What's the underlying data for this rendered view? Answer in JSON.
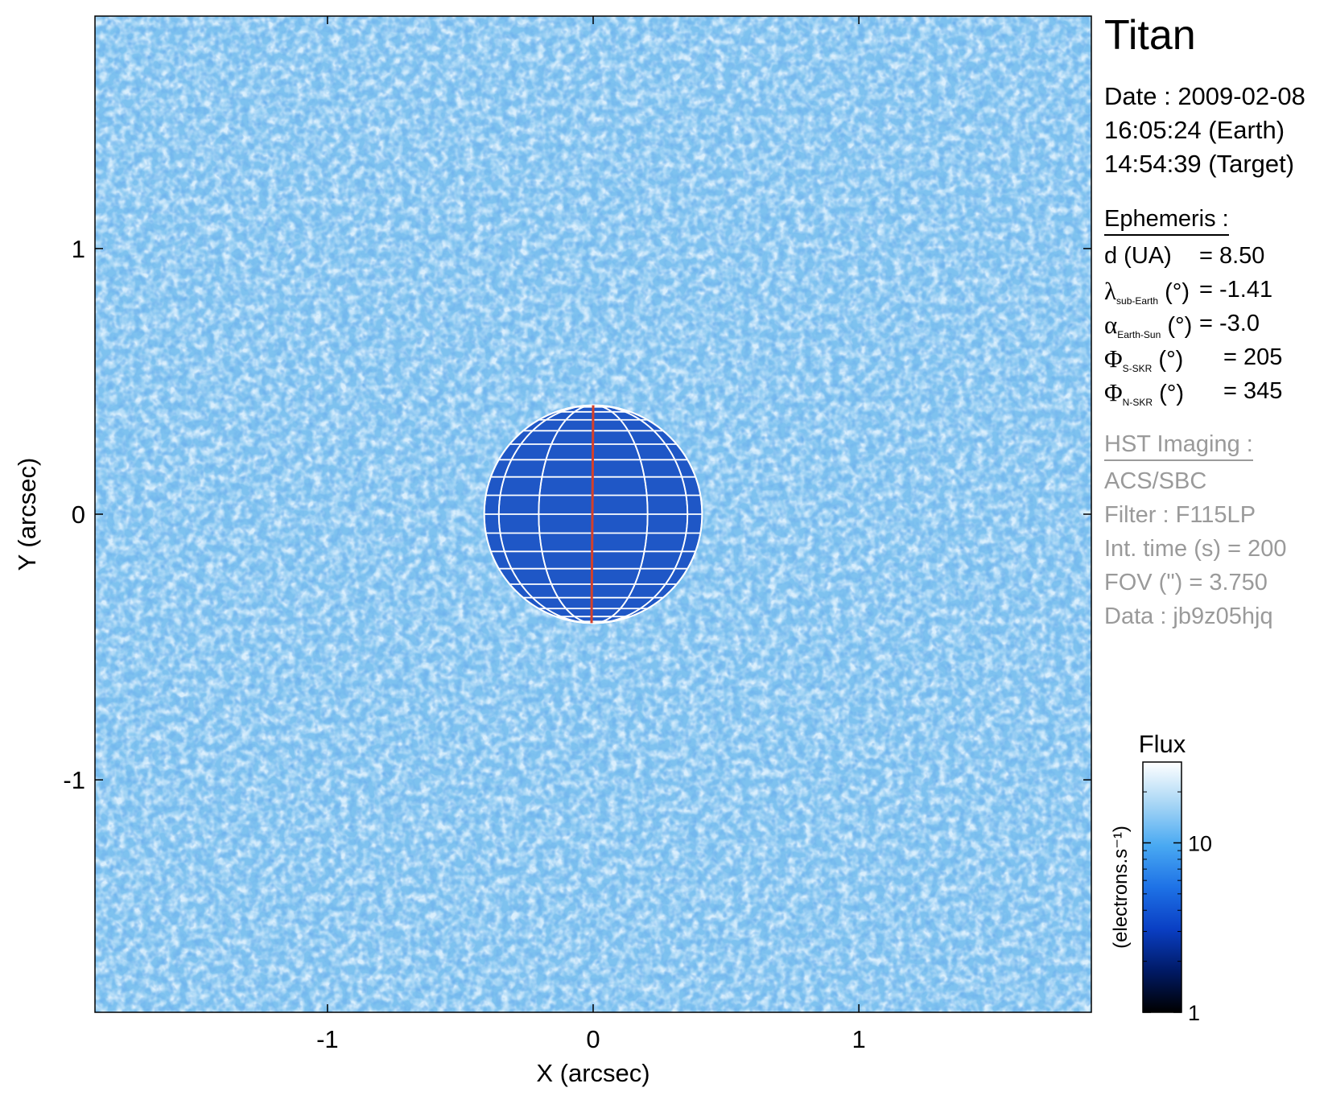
{
  "chart_data": {
    "type": "heatmap",
    "xlabel": "X (arcsec)",
    "ylabel": "Y (arcsec)",
    "xlim": [
      -1.875,
      1.875
    ],
    "ylim": [
      -1.875,
      1.875
    ],
    "xticks": [
      -1,
      0,
      1
    ],
    "yticks": [
      1,
      0,
      -1
    ],
    "colormap": [
      "#000000",
      "#001a66",
      "#0a3fc4",
      "#1e72e6",
      "#49a9f2",
      "#a8d6f5",
      "#ffffff"
    ],
    "colorbar": {
      "title": "Flux",
      "label": "(electrons.s⁻¹)",
      "scale": "log",
      "range": [
        1,
        30
      ],
      "ticks": [
        "10",
        "1"
      ],
      "tick_values": [
        10,
        1
      ]
    },
    "background_color": "#7ec2ef",
    "disk_color": "#1f57c6",
    "disk": {
      "center": [
        0,
        0
      ],
      "radius_arcsec": 0.41
    },
    "grid_color": "#ffffff",
    "central_meridian_color": "#d4402a"
  },
  "panel": {
    "target": "Titan",
    "date_line": "Date : 2009-02-08",
    "time_earth": "16:05:24 (Earth)",
    "time_target": "14:54:39 (Target)",
    "ephemeris_header": "Ephemeris :",
    "ephemeris": [
      {
        "sym": "d (UA)",
        "sub": "",
        "unit": "",
        "value": "= 8.50"
      },
      {
        "sym": "λ",
        "sub": "sub-Earth",
        "unit": " (°)",
        "value": "= -1.41"
      },
      {
        "sym": "α",
        "sub": "Earth-Sun",
        "unit": " (°)",
        "value": "= -3.0"
      },
      {
        "sym": "Φ",
        "sub": "S-SKR",
        "unit": " (°)",
        "value": "= 205"
      },
      {
        "sym": "Φ",
        "sub": "N-SKR",
        "unit": " (°)",
        "value": "= 345"
      }
    ],
    "hst_header": "HST Imaging :",
    "hst": [
      "ACS/SBC",
      "Filter : F115LP",
      "Int. time (s) = 200",
      "FOV (\") = 3.750",
      "Data : jb9z05hjq"
    ]
  }
}
